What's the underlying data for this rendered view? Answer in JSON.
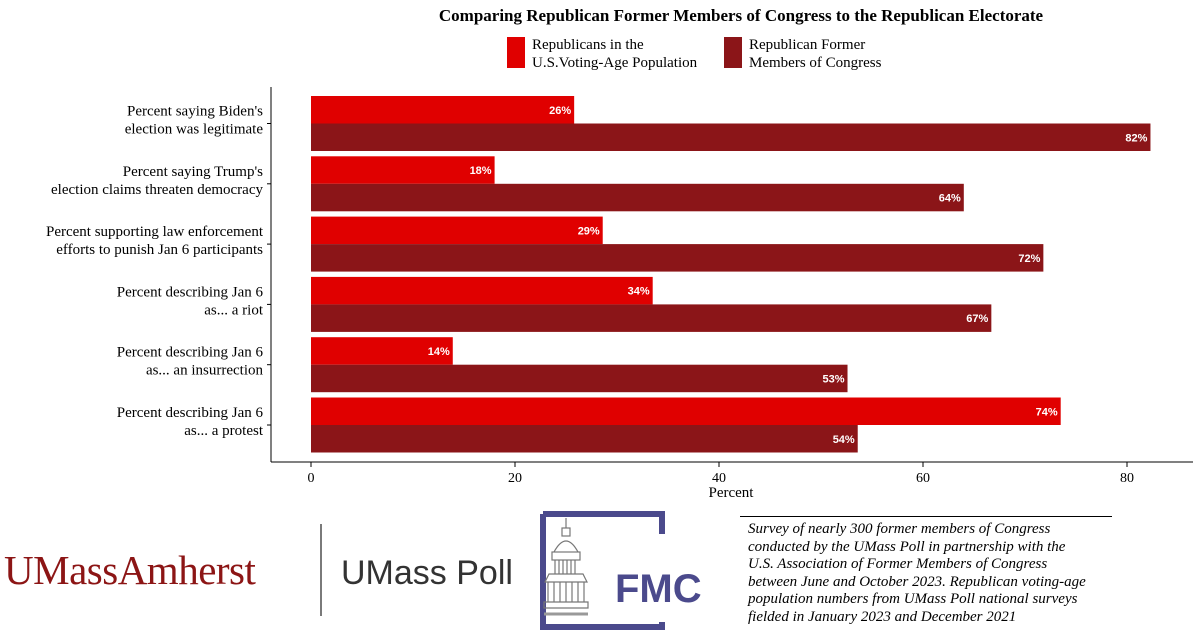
{
  "chart_data": {
    "type": "bar",
    "orientation": "horizontal",
    "title": "Comparing Republican Former Members of Congress to the Republican Electorate",
    "categories": [
      [
        "Percent saying Biden's",
        "election was legitimate"
      ],
      [
        "Percent saying Trump's",
        "election claims threaten democracy"
      ],
      [
        "Percent supporting law enforcement",
        "efforts to punish Jan 6 participants"
      ],
      [
        "Percent describing Jan 6",
        "as... a riot"
      ],
      [
        "Percent describing Jan 6",
        "as... an insurrection"
      ],
      [
        "Percent describing Jan 6",
        "as... a protest"
      ]
    ],
    "series": [
      {
        "name": "Republicans in the\nU.S.Voting-Age Population",
        "legend_lines": [
          "Republicans in the",
          "U.S.Voting-Age Population"
        ],
        "color": "#e00000",
        "values": [
          25.8,
          18.0,
          28.6,
          33.5,
          13.9,
          73.5
        ],
        "labels": [
          "26%",
          "18%",
          "29%",
          "34%",
          "14%",
          "74%"
        ]
      },
      {
        "name": "Republican Former\nMembers of Congress",
        "legend_lines": [
          "Republican Former",
          "Members of Congress"
        ],
        "color": "#8b1518",
        "values": [
          82.3,
          64.0,
          71.8,
          66.7,
          52.6,
          53.6
        ],
        "labels": [
          "82%",
          "64%",
          "72%",
          "67%",
          "53%",
          "54%"
        ]
      }
    ],
    "xlabel": "Percent",
    "ylabel": "",
    "xlim": [
      -4,
      87
    ],
    "x_ticks": [
      0,
      20,
      40,
      60,
      80
    ],
    "legend_position": "top",
    "grid": false
  },
  "branding": {
    "umass_part1": "UMass",
    "umass_part2": "Amherst",
    "poll": "UMass Poll",
    "fmc": "FMC"
  },
  "footnote": "Survey of nearly 300 former members of Congress\nconducted by the UMass Poll in partnership with the\nU.S. Association of Former Members of Congress\nbetween June and October 2023. Republican voting-age\npopulation numbers from UMass Poll national surveys\nfielded in January 2023 and December 2021"
}
